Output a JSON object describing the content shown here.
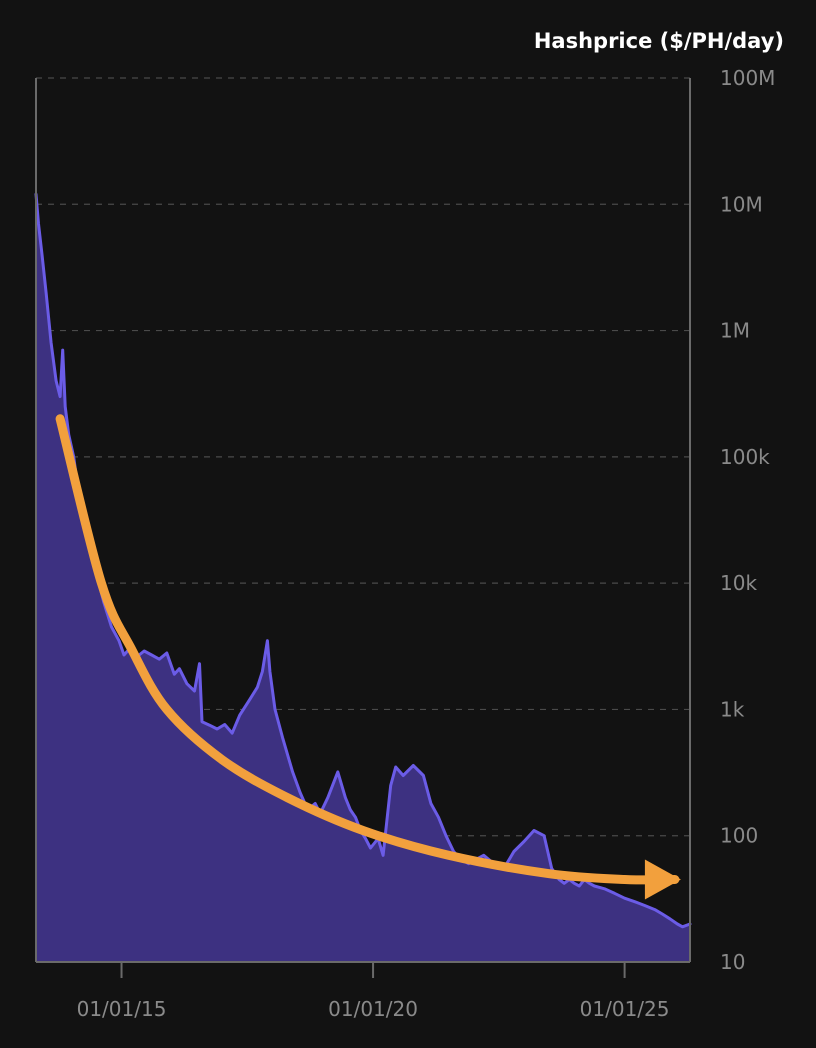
{
  "chart_data": {
    "type": "area",
    "title": "Hashprice ($/PH/day)",
    "yscale": "log",
    "ylim": [
      10,
      100000000
    ],
    "xlim": [
      2013.3,
      2026.3
    ],
    "y_ticks": [
      {
        "value": 100000000,
        "label": "100M"
      },
      {
        "value": 10000000,
        "label": "10M"
      },
      {
        "value": 1000000,
        "label": "1M"
      },
      {
        "value": 100000,
        "label": "100k"
      },
      {
        "value": 10000,
        "label": "10k"
      },
      {
        "value": 1000,
        "label": "1k"
      },
      {
        "value": 100,
        "label": "100"
      },
      {
        "value": 10,
        "label": "10"
      }
    ],
    "x_ticks": [
      {
        "value": 2015.0,
        "label": "01/01/15"
      },
      {
        "value": 2020.0,
        "label": "01/01/20"
      },
      {
        "value": 2025.0,
        "label": "01/01/25"
      }
    ],
    "grid": true,
    "series": [
      {
        "name": "Hashprice",
        "color": "#6b5ce7",
        "fill": "#3d3181",
        "x": [
          2013.3,
          2013.35,
          2013.42,
          2013.5,
          2013.6,
          2013.7,
          2013.78,
          2013.83,
          2013.88,
          2013.95,
          2014.05,
          2014.15,
          2014.3,
          2014.5,
          2014.65,
          2014.8,
          2014.95,
          2015.05,
          2015.15,
          2015.3,
          2015.45,
          2015.6,
          2015.75,
          2015.9,
          2016.05,
          2016.15,
          2016.3,
          2016.45,
          2016.55,
          2016.6,
          2016.75,
          2016.9,
          2017.05,
          2017.2,
          2017.35,
          2017.55,
          2017.7,
          2017.8,
          2017.9,
          2017.95,
          2018.05,
          2018.2,
          2018.4,
          2018.55,
          2018.7,
          2018.85,
          2018.95,
          2019.1,
          2019.3,
          2019.45,
          2019.55,
          2019.65,
          2019.75,
          2019.85,
          2019.95,
          2020.1,
          2020.2,
          2020.35,
          2020.45,
          2020.6,
          2020.8,
          2021.0,
          2021.15,
          2021.3,
          2021.45,
          2021.6,
          2021.75,
          2021.9,
          2022.05,
          2022.2,
          2022.4,
          2022.6,
          2022.8,
          2023.0,
          2023.2,
          2023.4,
          2023.55,
          2023.7,
          2023.8,
          2023.9,
          2024.0,
          2024.1,
          2024.2,
          2024.3,
          2024.4,
          2024.6,
          2024.8,
          2025.0,
          2025.2,
          2025.4,
          2025.6,
          2025.75,
          2025.9,
          2026.05,
          2026.15,
          2026.3
        ],
        "values": [
          12000000,
          7000000,
          4000000,
          2000000,
          800000,
          400000,
          300000,
          700000,
          250000,
          150000,
          100000,
          50000,
          25000,
          12000,
          7000,
          4500,
          3500,
          2700,
          3000,
          2600,
          2900,
          2700,
          2500,
          2800,
          1900,
          2100,
          1600,
          1400,
          2300,
          800,
          750,
          700,
          760,
          650,
          900,
          1200,
          1500,
          2000,
          3500,
          2000,
          1000,
          600,
          320,
          220,
          160,
          180,
          150,
          200,
          320,
          200,
          160,
          140,
          110,
          95,
          80,
          95,
          70,
          250,
          350,
          300,
          360,
          300,
          180,
          140,
          100,
          75,
          65,
          60,
          65,
          70,
          60,
          55,
          75,
          90,
          110,
          100,
          55,
          45,
          42,
          45,
          42,
          40,
          45,
          42,
          40,
          38,
          35,
          32,
          30,
          28,
          26,
          24,
          22,
          20,
          19,
          20
        ]
      }
    ],
    "annotations": [
      {
        "type": "trend-arrow",
        "color": "#f2a03d",
        "points": [
          [
            2013.78,
            200000
          ],
          [
            2014.6,
            10000
          ],
          [
            2015.2,
            3000
          ],
          [
            2015.9,
            1000
          ],
          [
            2017.0,
            400
          ],
          [
            2018.3,
            200
          ],
          [
            2019.8,
            110
          ],
          [
            2021.5,
            70
          ],
          [
            2023.5,
            50
          ],
          [
            2025.0,
            45
          ],
          [
            2026.0,
            45
          ]
        ]
      }
    ]
  }
}
